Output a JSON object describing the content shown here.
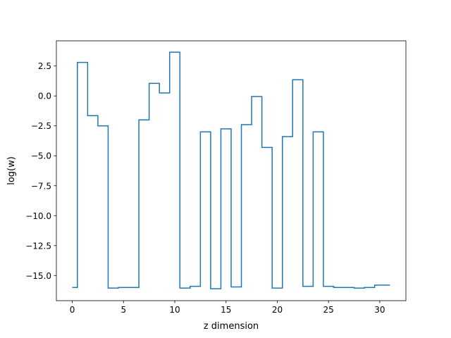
{
  "chart_data": {
    "type": "line",
    "drawstyle": "steps-mid",
    "title": "",
    "xlabel": "z dimension",
    "ylabel": "log(w)",
    "xlim": [
      -1.55,
      32.55
    ],
    "ylim": [
      -17.1,
      4.6
    ],
    "grid": false,
    "line_color": "#1f77b4",
    "x_ticks": [
      0,
      5,
      10,
      15,
      20,
      25,
      30
    ],
    "x_tick_labels": [
      "0",
      "5",
      "10",
      "15",
      "20",
      "25",
      "30"
    ],
    "y_ticks": [
      2.5,
      0.0,
      -2.5,
      -5.0,
      -7.5,
      -10.0,
      -12.5,
      -15.0
    ],
    "y_tick_labels": [
      "2.5",
      "0.0",
      "−2.5",
      "−5.0",
      "−7.5",
      "−10.0",
      "−12.5",
      "−15.0"
    ],
    "series": [
      {
        "x": [
          0,
          1,
          2,
          3,
          4,
          5,
          6,
          7,
          8,
          9,
          10,
          11,
          12,
          13,
          14,
          15,
          16,
          17,
          18,
          19,
          20,
          21,
          22,
          23,
          24,
          25,
          26,
          27,
          28,
          29,
          30,
          31
        ],
        "y": [
          -16.0,
          2.8,
          -1.65,
          -2.5,
          -16.05,
          -16.0,
          -16.0,
          -2.0,
          1.05,
          0.25,
          3.65,
          -16.05,
          -15.9,
          -3.0,
          -16.1,
          -2.75,
          -15.95,
          -2.4,
          -0.05,
          -4.3,
          -16.05,
          -3.4,
          1.35,
          -15.9,
          -3.0,
          -15.9,
          -16.0,
          -16.0,
          -16.05,
          -16.0,
          -15.8,
          -15.8
        ]
      }
    ]
  }
}
